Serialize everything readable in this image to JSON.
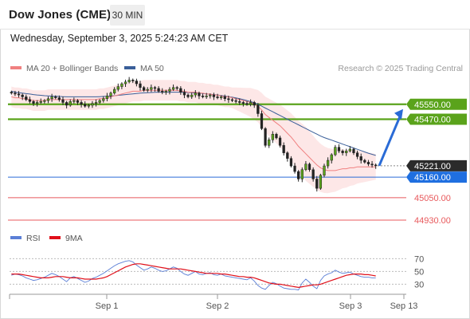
{
  "header": {
    "title": "Dow Jones (CME)",
    "interval": "30 MIN"
  },
  "timestamp": "Wednesday, September 3, 2025 5:24:23 AM CET",
  "legend": {
    "ma20_label": "MA 20 + Bollinger Bands",
    "ma20_color": "#f08080",
    "ma50_label": "MA 50",
    "ma50_color": "#3a5f99"
  },
  "research_label": "Research © 2025 Trading Central",
  "rsi_legend": {
    "rsi_label": "RSI",
    "rsi_color": "#5b7fd6",
    "ma9_label": "9MA",
    "ma9_color": "#e0101a"
  },
  "chart_data": [
    {
      "type": "candlestick",
      "title": "",
      "ylim": [
        44870,
        45690
      ],
      "x_ticks": [
        "Sep 1",
        "Sep 2",
        "Sep 3",
        "Sep 13"
      ],
      "levels": [
        {
          "value": 45550.0,
          "label": "45550.00",
          "kind": "resistance",
          "color": "#5aa31b"
        },
        {
          "value": 45470.0,
          "label": "45470.00",
          "kind": "resistance",
          "color": "#5aa31b"
        },
        {
          "value": 45221.0,
          "label": "45221.00",
          "kind": "last_price",
          "color": "#333333"
        },
        {
          "value": 45160.0,
          "label": "45160.00",
          "kind": "pivot",
          "color": "#2a6bd6"
        },
        {
          "value": 45050.0,
          "label": "45050.00",
          "kind": "support",
          "color": "#e8595c"
        },
        {
          "value": 44930.0,
          "label": "44930.00",
          "kind": "support",
          "color": "#e8595c"
        }
      ],
      "forecast_arrow": {
        "from": 45221,
        "to": 45550,
        "color": "#2a6bd6"
      },
      "close": [
        45610,
        45605,
        45600,
        45590,
        45575,
        45565,
        45555,
        45560,
        45565,
        45570,
        45580,
        45590,
        45585,
        45575,
        45560,
        45545,
        45565,
        45570,
        45560,
        45550,
        45540,
        45545,
        45555,
        45560,
        45570,
        45580,
        45595,
        45610,
        45630,
        45645,
        45660,
        45670,
        45680,
        45675,
        45660,
        45640,
        45625,
        45630,
        45640,
        45635,
        45620,
        45615,
        45620,
        45630,
        45640,
        45635,
        45615,
        45600,
        45590,
        45600,
        45610,
        45595,
        45590,
        45595,
        45600,
        45590,
        45585,
        45590,
        45580,
        45575,
        45570,
        45565,
        45560,
        45555,
        45550,
        45560,
        45545,
        45500,
        45420,
        45330,
        45360,
        45390,
        45370,
        45330,
        45290,
        45260,
        45220,
        45190,
        45150,
        45200,
        45230,
        45200,
        45150,
        45100,
        45170,
        45220,
        45250,
        45280,
        45320,
        45300,
        45290,
        45300,
        45310,
        45290,
        45270,
        45250,
        45240,
        45230,
        45225,
        45221
      ],
      "ma20": [
        45590,
        45585,
        45585,
        45580,
        45580,
        45575,
        45570,
        45570,
        45570,
        45570,
        45575,
        45575,
        45575,
        45575,
        45575,
        45575,
        45575,
        45575,
        45575,
        45575,
        45575,
        45575,
        45575,
        45575,
        45580,
        45580,
        45585,
        45590,
        45595,
        45600,
        45605,
        45610,
        45615,
        45620,
        45620,
        45620,
        45625,
        45625,
        45625,
        45625,
        45625,
        45625,
        45625,
        45625,
        45625,
        45625,
        45620,
        45620,
        45615,
        45615,
        45615,
        45610,
        45610,
        45605,
        45605,
        45600,
        45600,
        45595,
        45590,
        45590,
        45585,
        45580,
        45575,
        45570,
        45565,
        45560,
        45550,
        45540,
        45520,
        45495,
        45480,
        45465,
        45450,
        45435,
        45415,
        45395,
        45375,
        45350,
        45325,
        45305,
        45285,
        45265,
        45245,
        45225,
        45210,
        45200,
        45195,
        45195,
        45195,
        45200,
        45205,
        45205,
        45210,
        45210,
        45215,
        45215,
        45215,
        45215,
        45215,
        45215
      ],
      "ma50": [
        45620,
        45615,
        45612,
        45610,
        45607,
        45605,
        45602,
        45600,
        45598,
        45596,
        45595,
        45594,
        45593,
        45592,
        45591,
        45590,
        45590,
        45590,
        45590,
        45590,
        45590,
        45590,
        45590,
        45590,
        45591,
        45592,
        45593,
        45594,
        45596,
        45598,
        45600,
        45602,
        45604,
        45606,
        45608,
        45610,
        45611,
        45612,
        45613,
        45614,
        45615,
        45615,
        45615,
        45615,
        45615,
        45615,
        45615,
        45614,
        45613,
        45612,
        45611,
        45610,
        45608,
        45606,
        45604,
        45602,
        45600,
        45597,
        45594,
        45591,
        45588,
        45584,
        45580,
        45575,
        45570,
        45565,
        45558,
        45550,
        45540,
        45530,
        45520,
        45510,
        45500,
        45490,
        45480,
        45470,
        45460,
        45450,
        45440,
        45430,
        45420,
        45410,
        45400,
        45390,
        45380,
        45372,
        45365,
        45358,
        45351,
        45344,
        45337,
        45330,
        45323,
        45316,
        45309,
        45302,
        45295,
        45288,
        45282,
        45276
      ]
    },
    {
      "type": "line",
      "title": "",
      "ylim": [
        18,
        78
      ],
      "y_ticks": [
        70,
        50,
        30
      ],
      "series": [
        {
          "name": "RSI",
          "values": [
            44,
            46,
            45,
            43,
            40,
            38,
            36,
            37,
            39,
            41,
            44,
            47,
            45,
            42,
            38,
            34,
            40,
            42,
            39,
            36,
            33,
            35,
            39,
            41,
            44,
            47,
            51,
            55,
            59,
            62,
            64,
            66,
            67,
            65,
            60,
            56,
            52,
            54,
            57,
            55,
            52,
            50,
            51,
            54,
            57,
            55,
            50,
            46,
            44,
            47,
            50,
            46,
            45,
            47,
            48,
            45,
            44,
            46,
            43,
            42,
            41,
            40,
            39,
            38,
            37,
            40,
            35,
            28,
            24,
            22,
            28,
            33,
            31,
            27,
            24,
            23,
            22,
            22,
            21,
            32,
            38,
            33,
            27,
            23,
            36,
            43,
            46,
            48,
            52,
            49,
            47,
            48,
            49,
            46,
            44,
            42,
            41,
            41,
            40,
            40
          ]
        },
        {
          "name": "9MA",
          "values": [
            46,
            46,
            46,
            45,
            44,
            43,
            42,
            41,
            40,
            40,
            40,
            41,
            42,
            42,
            42,
            41,
            40,
            40,
            40,
            39,
            38,
            38,
            38,
            38,
            39,
            40,
            42,
            45,
            48,
            51,
            54,
            57,
            59,
            61,
            62,
            62,
            61,
            60,
            59,
            58,
            57,
            56,
            55,
            54,
            54,
            54,
            54,
            53,
            52,
            51,
            50,
            49,
            48,
            47,
            47,
            47,
            47,
            46,
            46,
            45,
            44,
            43,
            42,
            42,
            41,
            41,
            40,
            38,
            36,
            34,
            32,
            31,
            30,
            30,
            29,
            28,
            27,
            26,
            25,
            26,
            27,
            28,
            29,
            29,
            30,
            32,
            34,
            36,
            38,
            40,
            42,
            44,
            45,
            46,
            46,
            46,
            45,
            45,
            44,
            43
          ]
        }
      ]
    }
  ]
}
